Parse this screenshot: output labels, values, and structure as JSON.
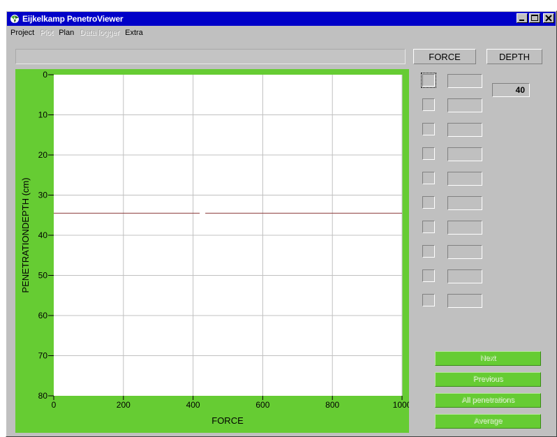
{
  "window": {
    "title": "Eijkelkamp PenetroViewer",
    "minimize_label": "_",
    "maximize_label": "□",
    "close_label": "✕",
    "title_color": "#0000c8"
  },
  "menu": {
    "items": [
      {
        "label": "Project",
        "enabled": true
      },
      {
        "label": "Plot",
        "enabled": false
      },
      {
        "label": "Plan",
        "enabled": true
      },
      {
        "label": "Data logger",
        "enabled": false
      },
      {
        "label": "Extra",
        "enabled": true
      }
    ]
  },
  "columns": {
    "force_label": "FORCE",
    "depth_label": "DEPTH"
  },
  "depth_value": "40",
  "penetrations": [
    {
      "checked": false,
      "force": ""
    },
    {
      "checked": false,
      "force": ""
    },
    {
      "checked": false,
      "force": ""
    },
    {
      "checked": false,
      "force": ""
    },
    {
      "checked": false,
      "force": ""
    },
    {
      "checked": false,
      "force": ""
    },
    {
      "checked": false,
      "force": ""
    },
    {
      "checked": false,
      "force": ""
    },
    {
      "checked": false,
      "force": ""
    },
    {
      "checked": false,
      "force": ""
    }
  ],
  "buttons": {
    "next": "Next",
    "previous": "Previous",
    "all_penetrations": "All penetrations",
    "average": "Average"
  },
  "colors": {
    "panel_green": "#66cc33",
    "cursor_line": "#8b3a3a",
    "grid": "#c0c0c0"
  },
  "chart_data": {
    "type": "line",
    "xlabel": "FORCE",
    "ylabel": "PENETRATIONDEPTH (cm)",
    "xlim": [
      0,
      1000
    ],
    "ylim": [
      0,
      80
    ],
    "y_inverted": true,
    "x_ticks": [
      0,
      200,
      400,
      600,
      800,
      1000
    ],
    "y_ticks": [
      0,
      10,
      20,
      30,
      40,
      50,
      60,
      70,
      80
    ],
    "grid": true,
    "series": [],
    "depth_cursor": 34.5
  }
}
